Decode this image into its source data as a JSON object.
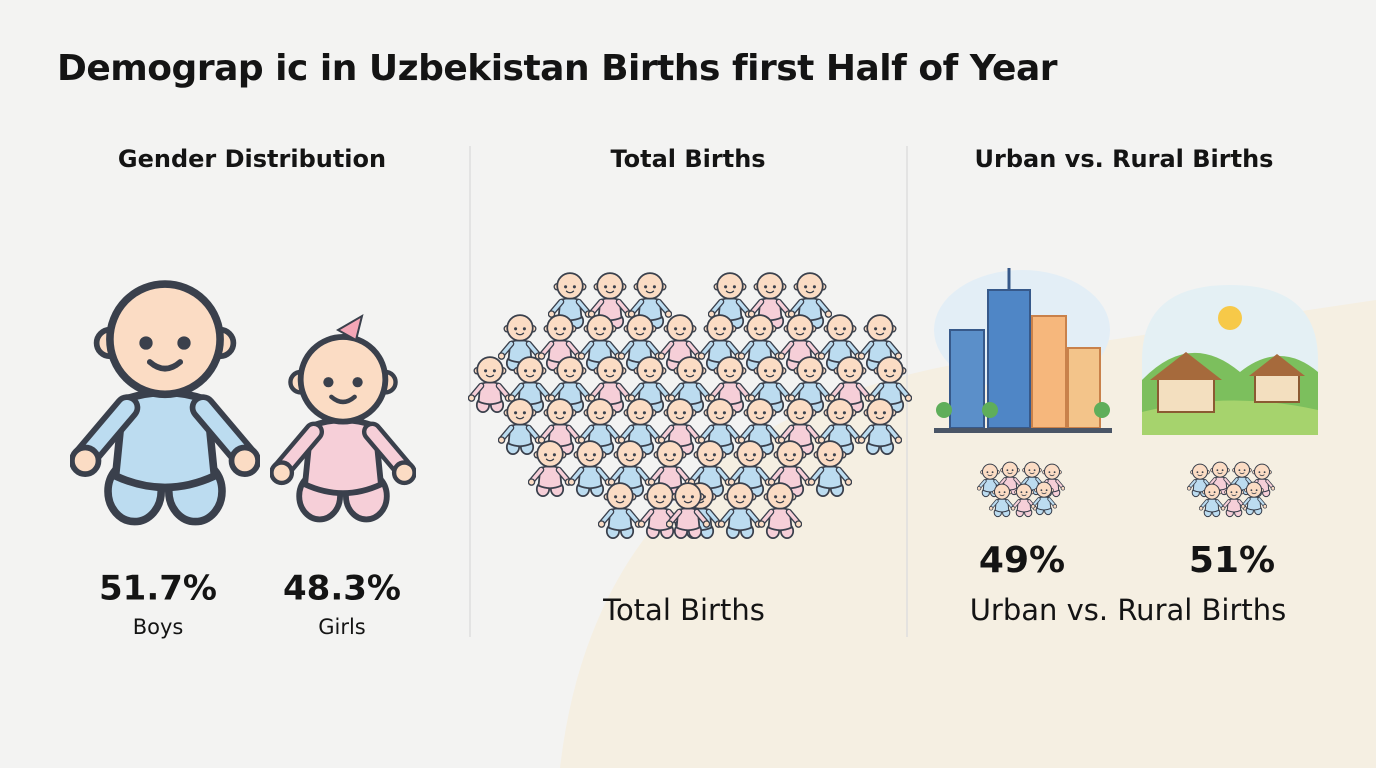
{
  "title": "Demograp ic in Uzbekistan Births first Half of Year",
  "gender": {
    "heading": "Gender Distribution",
    "items": [
      {
        "value": "51.7%",
        "label": "Boys"
      },
      {
        "value": "48.3%",
        "label": "Girls"
      }
    ]
  },
  "total": {
    "heading": "Total Births",
    "caption": "Total Births"
  },
  "urban_rural": {
    "heading": "Urban vs. Rural Births",
    "values": [
      "49%",
      "51%"
    ],
    "caption": "Urban vs. Rural Births"
  }
}
